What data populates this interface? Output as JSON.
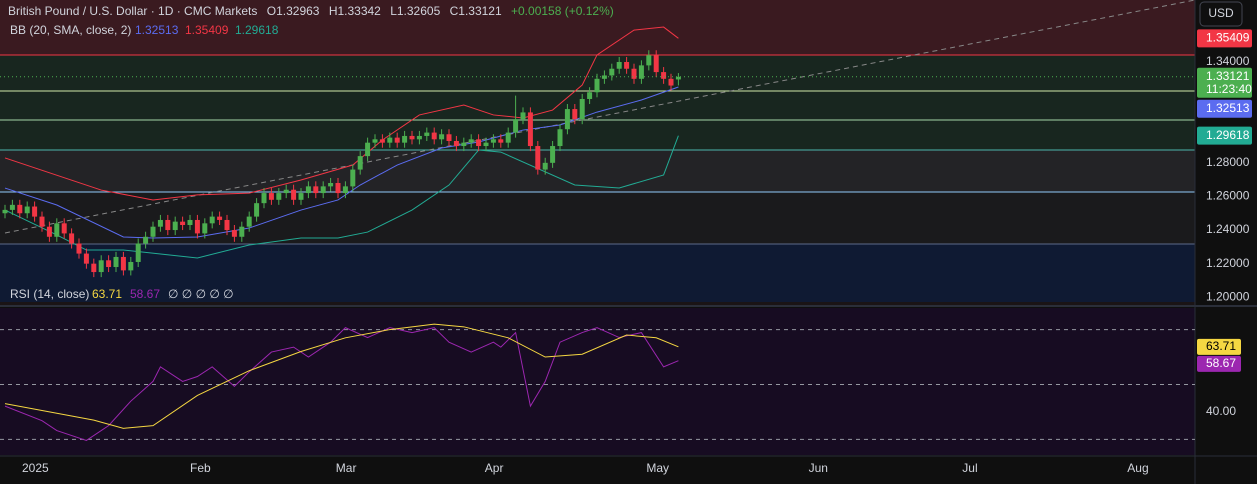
{
  "header": {
    "symbol": "British Pound / U.S. Dollar · 1D · CMC Markets",
    "open": "O1.32963",
    "high": "H1.33342",
    "low": "L1.32605",
    "close": "C1.33121",
    "change": "+0.00158 (+0.12%)"
  },
  "chart_data": [
    {
      "type": "candlestick",
      "currency": "USD",
      "countdown": "11:23:40",
      "legend_title": "BB (20, SMA, close, 2)",
      "up_color": "#4caf50",
      "down_color": "#f23645",
      "open": [
        1.25,
        1.252,
        1.255,
        1.25,
        1.254,
        1.248,
        1.242,
        1.236,
        1.244,
        1.238,
        1.232,
        1.226,
        1.22,
        1.215,
        1.222,
        1.218,
        1.224,
        1.216,
        1.221,
        1.232,
        1.236,
        1.242,
        1.246,
        1.24,
        1.245,
        1.243,
        1.246,
        1.238,
        1.244,
        1.248,
        1.246,
        1.24,
        1.236,
        1.242,
        1.248,
        1.256,
        1.262,
        1.258,
        1.262,
        1.264,
        1.258,
        1.262,
        1.266,
        1.262,
        1.266,
        1.268,
        1.262,
        1.266,
        1.276,
        1.284,
        1.292,
        1.294,
        1.292,
        1.295,
        1.292,
        1.296,
        1.294,
        1.296,
        1.298,
        1.294,
        1.297,
        1.293,
        1.29,
        1.292,
        1.294,
        1.29,
        1.292,
        1.294,
        1.292,
        1.298,
        1.306,
        1.31,
        1.29,
        1.276,
        1.28,
        1.29,
        1.3,
        1.312,
        1.306,
        1.318,
        1.322,
        1.33,
        1.332,
        1.336,
        1.34,
        1.336,
        1.33,
        1.338,
        1.344,
        1.334,
        1.33,
        1.32963
      ],
      "high": [
        1.255,
        1.258,
        1.258,
        1.257,
        1.257,
        1.251,
        1.245,
        1.247,
        1.247,
        1.241,
        1.235,
        1.229,
        1.223,
        1.225,
        1.225,
        1.227,
        1.227,
        1.224,
        1.235,
        1.239,
        1.245,
        1.249,
        1.249,
        1.248,
        1.248,
        1.249,
        1.249,
        1.247,
        1.251,
        1.251,
        1.249,
        1.243,
        1.245,
        1.251,
        1.259,
        1.265,
        1.265,
        1.265,
        1.267,
        1.267,
        1.265,
        1.269,
        1.269,
        1.269,
        1.271,
        1.271,
        1.269,
        1.279,
        1.287,
        1.295,
        1.297,
        1.297,
        1.298,
        1.298,
        1.299,
        1.299,
        1.299,
        1.301,
        1.301,
        1.3,
        1.3,
        1.296,
        1.295,
        1.297,
        1.297,
        1.295,
        1.297,
        1.297,
        1.301,
        1.32,
        1.313,
        1.313,
        1.293,
        1.283,
        1.293,
        1.303,
        1.315,
        1.315,
        1.321,
        1.325,
        1.333,
        1.335,
        1.339,
        1.343,
        1.343,
        1.339,
        1.341,
        1.347,
        1.347,
        1.337,
        1.333,
        1.33342
      ],
      "low": [
        1.247,
        1.249,
        1.247,
        1.247,
        1.245,
        1.239,
        1.233,
        1.233,
        1.235,
        1.229,
        1.223,
        1.217,
        1.212,
        1.212,
        1.215,
        1.215,
        1.213,
        1.213,
        1.218,
        1.229,
        1.233,
        1.239,
        1.237,
        1.237,
        1.24,
        1.24,
        1.235,
        1.235,
        1.241,
        1.243,
        1.237,
        1.233,
        1.233,
        1.239,
        1.245,
        1.253,
        1.255,
        1.255,
        1.259,
        1.255,
        1.255,
        1.259,
        1.259,
        1.259,
        1.263,
        1.259,
        1.259,
        1.263,
        1.273,
        1.281,
        1.289,
        1.289,
        1.289,
        1.289,
        1.289,
        1.291,
        1.291,
        1.293,
        1.291,
        1.291,
        1.29,
        1.287,
        1.287,
        1.289,
        1.287,
        1.287,
        1.289,
        1.289,
        1.289,
        1.295,
        1.303,
        1.287,
        1.273,
        1.273,
        1.277,
        1.287,
        1.297,
        1.303,
        1.303,
        1.315,
        1.319,
        1.327,
        1.329,
        1.333,
        1.333,
        1.327,
        1.327,
        1.335,
        1.331,
        1.327,
        1.323,
        1.32605
      ],
      "close": [
        1.252,
        1.255,
        1.25,
        1.254,
        1.248,
        1.242,
        1.236,
        1.244,
        1.238,
        1.232,
        1.226,
        1.22,
        1.215,
        1.222,
        1.218,
        1.224,
        1.216,
        1.221,
        1.232,
        1.236,
        1.242,
        1.246,
        1.24,
        1.245,
        1.243,
        1.246,
        1.238,
        1.244,
        1.248,
        1.246,
        1.24,
        1.236,
        1.242,
        1.248,
        1.256,
        1.262,
        1.258,
        1.262,
        1.264,
        1.258,
        1.262,
        1.266,
        1.262,
        1.266,
        1.268,
        1.262,
        1.266,
        1.276,
        1.284,
        1.292,
        1.294,
        1.292,
        1.295,
        1.292,
        1.296,
        1.294,
        1.296,
        1.298,
        1.294,
        1.297,
        1.293,
        1.29,
        1.292,
        1.294,
        1.29,
        1.292,
        1.294,
        1.292,
        1.298,
        1.306,
        1.31,
        1.29,
        1.276,
        1.28,
        1.29,
        1.3,
        1.312,
        1.306,
        1.318,
        1.322,
        1.33,
        1.332,
        1.336,
        1.34,
        1.336,
        1.33,
        1.338,
        1.344,
        1.334,
        1.33,
        1.326,
        1.33121
      ],
      "bands": [
        {
          "color": "#5b6cf0",
          "x": [
            0,
            7,
            16,
            20,
            26,
            33,
            40,
            45,
            48,
            53,
            59,
            64,
            70,
            75,
            80,
            86,
            91
          ],
          "values": [
            1.265,
            1.2549,
            1.2359,
            1.2353,
            1.2359,
            1.2412,
            1.2519,
            1.2579,
            1.2668,
            1.2787,
            1.2888,
            1.2924,
            1.2995,
            1.3025,
            1.3102,
            1.3174,
            1.32513
          ]
        },
        {
          "color": "#f23645",
          "x": [
            0,
            13,
            20,
            26,
            33,
            40,
            47,
            51,
            56,
            62,
            66,
            70,
            74,
            78,
            80,
            85,
            89,
            91
          ],
          "values": [
            1.2829,
            1.2638,
            1.2579,
            1.2609,
            1.262,
            1.2698,
            1.2787,
            1.2936,
            1.3085,
            1.3144,
            1.3085,
            1.3067,
            1.3114,
            1.3263,
            1.3442,
            1.359,
            1.3608,
            1.35409
          ]
        },
        {
          "color": "#22ab94",
          "x": [
            0,
            7,
            11,
            16,
            26,
            33,
            40,
            45,
            49,
            55,
            60,
            64,
            67,
            77,
            83,
            89,
            91
          ],
          "values": [
            1.2519,
            1.2371,
            1.2281,
            1.2281,
            1.2234,
            1.2311,
            1.2353,
            1.2353,
            1.2388,
            1.2519,
            1.2668,
            1.2876,
            1.2864,
            1.2668,
            1.265,
            1.2728,
            1.29618
          ]
        }
      ],
      "xlim": [
        -0.676,
        160.81
      ],
      "ylim": [
        1.1954,
        1.3769
      ],
      "yticks": [
        {
          "value": 1.2,
          "label": "1.20000"
        },
        {
          "value": 1.22,
          "label": "1.22000"
        },
        {
          "value": 1.24,
          "label": "1.24000"
        },
        {
          "value": 1.26,
          "label": "1.26000"
        },
        {
          "value": 1.28,
          "label": "1.28000"
        },
        {
          "value": 1.34,
          "label": "1.34000"
        }
      ]
    },
    {
      "type": "line",
      "title": "RSI (14, close)",
      "placeholders": "∅ ∅ ∅ ∅ ∅",
      "series": [
        {
          "color": "#9c27b0",
          "x": [
            0,
            5,
            7,
            11,
            14,
            17,
            20,
            21,
            24,
            26,
            28,
            31,
            33,
            36,
            39,
            41,
            44,
            46,
            49,
            52,
            55,
            58,
            60,
            63,
            66,
            67,
            69,
            71,
            73,
            75,
            78,
            80,
            83,
            86,
            89,
            91
          ],
          "values": [
            42.1,
            36.8,
            33.2,
            29.6,
            35,
            43.9,
            51.1,
            56.4,
            51.1,
            52.9,
            56.4,
            49.3,
            54.6,
            61.8,
            63.6,
            60,
            65.4,
            70.7,
            67.1,
            70.7,
            68.9,
            70.7,
            65.4,
            61.8,
            65.4,
            63.6,
            68.9,
            42.1,
            51.1,
            65.4,
            68.9,
            70.7,
            67.1,
            68.9,
            56.4,
            58.67
          ]
        },
        {
          "color": "#f5d742",
          "x": [
            0,
            6,
            12,
            16,
            20,
            26,
            33,
            40,
            46,
            52,
            58,
            62,
            68,
            73,
            78,
            84,
            88,
            91
          ],
          "values": [
            43,
            40,
            37,
            34,
            35,
            46,
            55,
            62,
            67,
            70,
            72,
            71,
            67,
            60,
            61,
            68,
            67,
            63.71
          ]
        }
      ],
      "levels": [
        30,
        50,
        70
      ],
      "level_color": "#9598a1",
      "xlim": [
        -0.676,
        160.81
      ],
      "ylim": [
        24.29,
        77.86
      ],
      "yticks": [
        {
          "value": 40,
          "label": "40.00"
        }
      ],
      "xticks": [
        {
          "value": 4.1,
          "label": "2025"
        },
        {
          "value": 26.4,
          "label": "Feb"
        },
        {
          "value": 46.1,
          "label": "Mar"
        },
        {
          "value": 66.1,
          "label": "Apr"
        },
        {
          "value": 88.2,
          "label": "May"
        },
        {
          "value": 109.9,
          "label": "Jun"
        },
        {
          "value": 130.4,
          "label": "Jul"
        },
        {
          "value": 153.1,
          "label": "Aug"
        }
      ]
    }
  ]
}
